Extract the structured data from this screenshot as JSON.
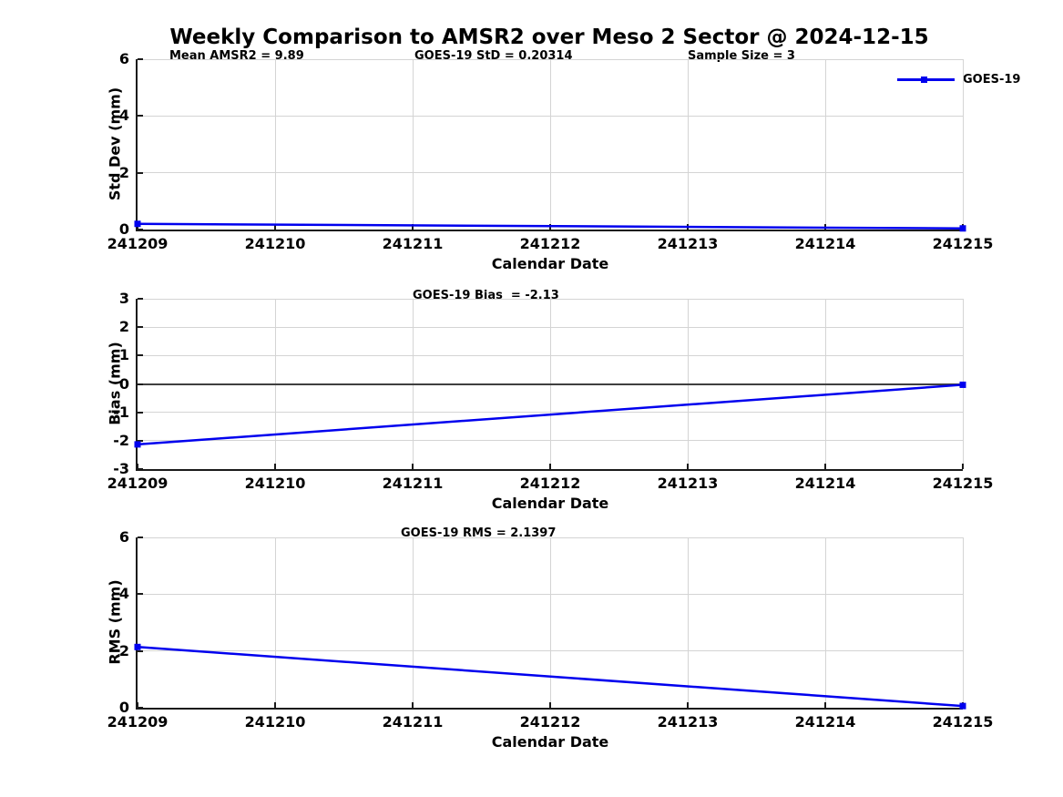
{
  "title": "Weekly Comparison to AMSR2 over Meso 2 Sector @ 2024-12-15",
  "legend": {
    "label": "GOES-19"
  },
  "colors": {
    "line": "#0000ee",
    "grid": "#d4d4d4",
    "zero_line": "#3f3f3f",
    "axis": "#1a1a1a",
    "text": "#000000"
  },
  "chart_data": [
    {
      "type": "line",
      "series_name": "GOES-19",
      "annotations": [
        "Mean AMSR2 = 9.89",
        "GOES-19 StD = 0.20314",
        "Sample Size = 3"
      ],
      "ylabel": "Std Dev (mm)",
      "xlabel": "Calendar Date",
      "x": [
        241209,
        241215
      ],
      "values": [
        0.2,
        0.04
      ],
      "ylim": [
        0,
        6
      ],
      "yticks": [
        0,
        2,
        4,
        6
      ],
      "xticks": [
        241209,
        241210,
        241211,
        241212,
        241213,
        241214,
        241215
      ],
      "grid": true,
      "zero_line": false,
      "legend_position": "top-right-outside"
    },
    {
      "type": "line",
      "series_name": "GOES-19",
      "annotations": [
        "GOES-19 Bias  = -2.13"
      ],
      "ylabel": "Bias (mm)",
      "xlabel": "Calendar Date",
      "x": [
        241209,
        241215
      ],
      "values": [
        -2.13,
        -0.03
      ],
      "ylim": [
        -3,
        3
      ],
      "yticks": [
        -3,
        -2,
        -1,
        0,
        1,
        2,
        3
      ],
      "xticks": [
        241209,
        241210,
        241211,
        241212,
        241213,
        241214,
        241215
      ],
      "grid": true,
      "zero_line": true
    },
    {
      "type": "line",
      "series_name": "GOES-19",
      "annotations": [
        "GOES-19 RMS = 2.1397"
      ],
      "ylabel": "RMS (mm)",
      "xlabel": "Calendar Date",
      "x": [
        241209,
        241215
      ],
      "values": [
        2.14,
        0.06
      ],
      "ylim": [
        0,
        6
      ],
      "yticks": [
        0,
        2,
        4,
        6
      ],
      "xticks": [
        241209,
        241210,
        241211,
        241212,
        241213,
        241214,
        241215
      ],
      "grid": true,
      "zero_line": false
    }
  ]
}
